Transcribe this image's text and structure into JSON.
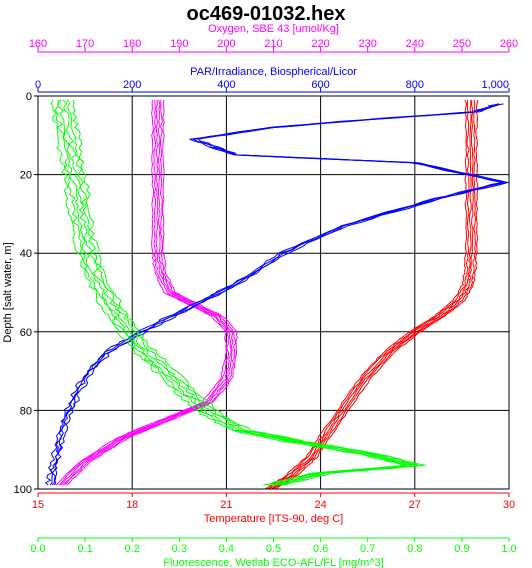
{
  "chart_data": {
    "type": "line",
    "title": "oc469-01032.hex",
    "grid": true,
    "y_axis": {
      "label": "Depth [salt water, m]",
      "range": [
        0,
        100
      ],
      "inverted": true,
      "ticks": [
        "0",
        "20",
        "40",
        "60",
        "80",
        "100"
      ],
      "color": "#000000"
    },
    "x_axes": [
      {
        "key": "oxygen",
        "label": "Oxygen, SBE 43 [umol/Kg]",
        "position": "top-outer",
        "color": "#ff00ff",
        "range": [
          160,
          260
        ],
        "ticks": [
          "160",
          "170",
          "180",
          "190",
          "200",
          "210",
          "220",
          "230",
          "240",
          "250",
          "260"
        ]
      },
      {
        "key": "par",
        "label": "PAR/Irradiance, Biospherical/Licor",
        "position": "top-inner",
        "color": "#0000ff",
        "range": [
          0,
          1000
        ],
        "ticks": [
          "0",
          "200",
          "400",
          "600",
          "800",
          "1,000"
        ]
      },
      {
        "key": "temperature",
        "label": "Temperature [ITS-90, deg C]",
        "position": "bottom-inner",
        "color": "#ff0000",
        "range": [
          15,
          30
        ],
        "ticks": [
          "15",
          "18",
          "21",
          "24",
          "27",
          "30"
        ]
      },
      {
        "key": "fluorescence",
        "label": "Fluorescence, Wetlab ECO-AFL/FL [mg/m^3]",
        "position": "bottom-outer",
        "color": "#00ff00",
        "range": [
          0.0,
          1.0
        ],
        "ticks": [
          "0.0",
          "0.1",
          "0.2",
          "0.3",
          "0.4",
          "0.5",
          "0.6",
          "0.7",
          "0.8",
          "0.9",
          "1.0"
        ]
      }
    ],
    "series": [
      {
        "axis": "temperature",
        "color": "#ff0000",
        "points": [
          [
            28.8,
            1
          ],
          [
            28.8,
            10
          ],
          [
            28.8,
            20
          ],
          [
            28.8,
            30
          ],
          [
            28.8,
            40
          ],
          [
            28.75,
            45
          ],
          [
            28.7,
            48
          ],
          [
            28.4,
            52
          ],
          [
            27.8,
            56
          ],
          [
            27.0,
            60
          ],
          [
            26.2,
            65
          ],
          [
            25.4,
            72
          ],
          [
            24.7,
            80
          ],
          [
            24.2,
            86
          ],
          [
            23.7,
            92
          ],
          [
            23.0,
            97
          ],
          [
            22.4,
            100
          ]
        ]
      },
      {
        "axis": "oxygen",
        "color": "#ff00ff",
        "points": [
          [
            185.5,
            1
          ],
          [
            185.5,
            10
          ],
          [
            185.5,
            20
          ],
          [
            185.5,
            30
          ],
          [
            185.5,
            40
          ],
          [
            186,
            45
          ],
          [
            188,
            50
          ],
          [
            193,
            53
          ],
          [
            198,
            56
          ],
          [
            201,
            60
          ],
          [
            201,
            66
          ],
          [
            200,
            72
          ],
          [
            196,
            78
          ],
          [
            188,
            82
          ],
          [
            178,
            87
          ],
          [
            170,
            93
          ],
          [
            165,
            99
          ]
        ]
      },
      {
        "axis": "par",
        "color": "#0000ff",
        "points": [
          [
            980,
            2
          ],
          [
            930,
            4
          ],
          [
            700,
            6
          ],
          [
            500,
            8
          ],
          [
            330,
            11
          ],
          [
            420,
            15
          ],
          [
            800,
            17
          ],
          [
            990,
            22
          ],
          [
            850,
            26
          ],
          [
            650,
            33
          ],
          [
            520,
            40
          ],
          [
            420,
            48
          ],
          [
            300,
            55
          ],
          [
            220,
            60
          ],
          [
            150,
            65
          ],
          [
            110,
            70
          ],
          [
            80,
            76
          ],
          [
            60,
            82
          ],
          [
            45,
            88
          ],
          [
            35,
            94
          ],
          [
            28,
            99
          ]
        ]
      },
      {
        "axis": "fluorescence",
        "color": "#00ff00",
        "points": [
          [
            0.05,
            1
          ],
          [
            0.06,
            8
          ],
          [
            0.07,
            15
          ],
          [
            0.08,
            22
          ],
          [
            0.09,
            30
          ],
          [
            0.1,
            38
          ],
          [
            0.12,
            45
          ],
          [
            0.15,
            52
          ],
          [
            0.18,
            58
          ],
          [
            0.22,
            64
          ],
          [
            0.27,
            70
          ],
          [
            0.32,
            76
          ],
          [
            0.37,
            81
          ],
          [
            0.43,
            85
          ],
          [
            0.55,
            88
          ],
          [
            0.7,
            91
          ],
          [
            0.8,
            94
          ],
          [
            0.6,
            96
          ],
          [
            0.5,
            99
          ]
        ]
      }
    ]
  }
}
